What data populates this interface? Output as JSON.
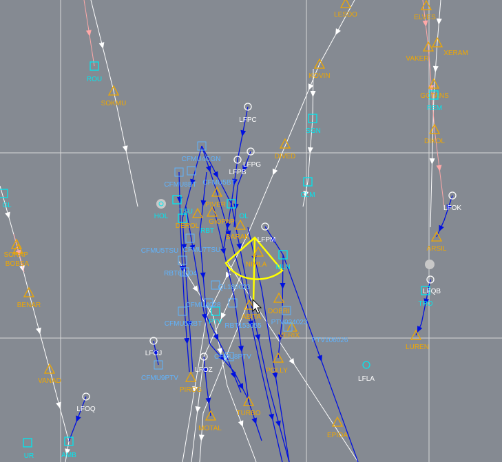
{
  "colors": {
    "background": "#858a92",
    "grid": "#d8d8d8",
    "waypoint": "#f0a800",
    "navaid": "#00e8f0",
    "airport": "#ffffff",
    "cfmu": "#5fb4ff",
    "route": "#0010e0",
    "route_alt": "#ffffff",
    "route_pink": "#ffa8a8",
    "selection": "#ffff00"
  },
  "waypoints": [
    "LESDO",
    "ELVES",
    "VAKER",
    "XERAM",
    "KOVIN",
    "SOKMU",
    "GOTANS",
    "DIKOL",
    "DIVED",
    "PIVER",
    "DEROL",
    "GIOPAP",
    "BARAK",
    "NIMLA",
    "ABITA",
    "DOBRI",
    "VERIX",
    "POLLY",
    "PIROG",
    "TURBO",
    "MOTAL",
    "EPIDA",
    "LUREN",
    "ARSIL",
    "SORAP",
    "BOBSA",
    "BENAR",
    "VANAD"
  ],
  "navaids": [
    "ROU",
    "SGN",
    "CLM",
    "REM",
    "HOL",
    "RBT",
    "OL",
    "MLN",
    "PTV",
    "TRO",
    "GL",
    "AMB",
    "UR",
    "TSU"
  ],
  "airports": [
    "LFPC",
    "LFPG",
    "LFPB",
    "LFPM",
    "LFOK",
    "LFQB",
    "LFOJ",
    "LFOZ",
    "LFOQ",
    "LFLA"
  ],
  "cfmu_points": [
    "CFMU4CGN",
    "CFMU8BT",
    "CFMU5BT",
    "CFMU7TSU",
    "CFMU5TSU",
    "RBT68004",
    "QL180023",
    "CFMU4028",
    "RBT153055",
    "CFMU5RBT",
    "PTV024023",
    "PTV106026",
    "CFMU8PTV",
    "CFMU9PTV"
  ],
  "cursor": "arrow-pointer-icon"
}
